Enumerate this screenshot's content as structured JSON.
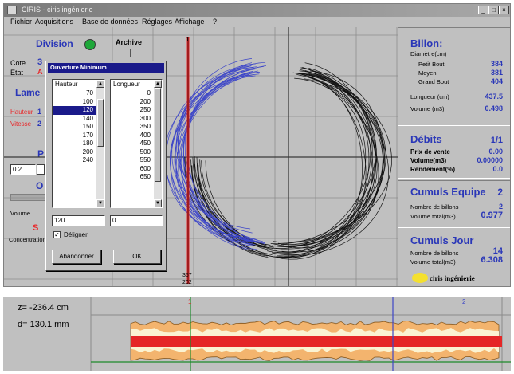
{
  "window": {
    "title": "CIRIS - ciris ingénierie"
  },
  "menu": [
    "Fichier",
    "Acquisitions",
    "Base de données",
    "Réglages",
    "Affichage",
    "?"
  ],
  "left_panel": {
    "division_label": "Division",
    "archive_label": "Archive",
    "cote_label": "Cote",
    "cote_value": "3",
    "etat_label": "Etat",
    "etat_value": "A",
    "lame_label": "Lame",
    "hauteur_label": "Hauteur",
    "hauteur_value": "1",
    "vitesse_label": "Vitesse",
    "vitesse_value": "2",
    "p_label": "P",
    "field_value": "0.2",
    "o_label": "O",
    "volume_label": "Volume",
    "concentration_label": "Concentration",
    "s_label": "S",
    "status_color": "#1fa83a"
  },
  "dialog": {
    "title": "Ouverture Minimum",
    "hauteur_header": "Hauteur",
    "longueur_header": "Longueur",
    "hauteur_items": [
      "70",
      "100",
      "120",
      "140",
      "150",
      "170",
      "180",
      "200",
      "240"
    ],
    "hauteur_selected": "120",
    "longueur_items": [
      "0",
      "200",
      "250",
      "300",
      "350",
      "400",
      "450",
      "500",
      "550",
      "600",
      "650"
    ],
    "hauteur_input": "120",
    "longueur_input": "0",
    "checkbox_label": "Déligner",
    "checkbox_checked": true,
    "cancel_label": "Abandonner",
    "ok_label": "OK"
  },
  "plot": {
    "marker_top": "1",
    "marker_bottom_1": "357",
    "marker_bottom_2": "202",
    "accent_red": "#e8282a",
    "curve_blue": "#3d46c8"
  },
  "billon": {
    "heading": "Billon:",
    "subheading": "Diamètre(cm)",
    "rows": [
      {
        "label": "Petit Bout",
        "value": "384"
      },
      {
        "label": "Moyen",
        "value": "381"
      },
      {
        "label": "Grand Bout",
        "value": "404"
      },
      {
        "label": "Longueur (cm)",
        "value": "437.5"
      },
      {
        "label": "Volume (m3)",
        "value": "0.498"
      }
    ]
  },
  "debits": {
    "heading": "Débits",
    "page": "1/1",
    "rows": [
      {
        "label": "Prix de vente",
        "value": "0.00"
      },
      {
        "label": "Volume(m3)",
        "value": "0.00000"
      },
      {
        "label": "Rendement(%)",
        "value": "0.0"
      }
    ]
  },
  "cumuls_equipe": {
    "heading": "Cumuls Equipe",
    "count": "2",
    "rows": [
      {
        "label": "Nombre de billons",
        "value": "2"
      },
      {
        "label": "Volume total(m3)",
        "value": "0.977"
      }
    ]
  },
  "cumuls_jour": {
    "heading": "Cumuls Jour",
    "rows": [
      {
        "label": "Nombre de billons",
        "value": "14"
      },
      {
        "label": "Volume total(m3)",
        "value": "6.308"
      }
    ]
  },
  "brand": {
    "name": "ciris ingénierie",
    "logo_color": "#f4e030"
  },
  "profile": {
    "z_readout": "z= -236.4 cm",
    "d_readout": "d= 130.1 mm",
    "marker_1": "1",
    "marker_2": "2",
    "outer_color": "#f3b46e",
    "inner_color": "#fbf3d2",
    "core_color": "#e52626"
  }
}
